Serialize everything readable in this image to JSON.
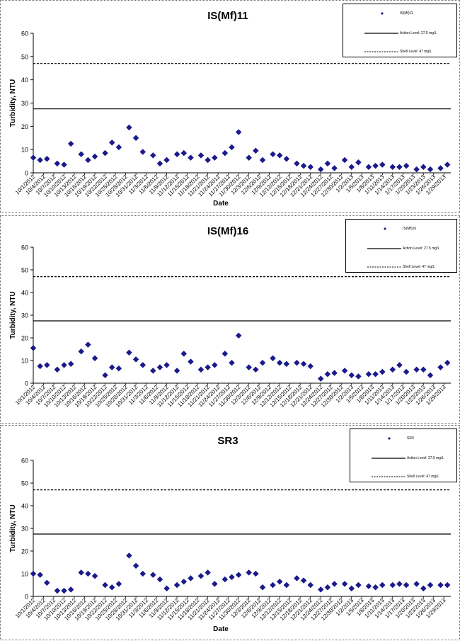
{
  "chart_data": [
    {
      "type": "scatter",
      "title": "IS(Mf)11",
      "xlabel": "Date",
      "ylabel": "Turbidity, NTU",
      "ylim": [
        0,
        60
      ],
      "yticks": [
        0,
        10,
        20,
        30,
        40,
        50,
        60
      ],
      "xlim": [
        "10/1/2012",
        "1/31/2013"
      ],
      "xtick_labels": [
        "10/1/2012",
        "10/4/2012",
        "10/7/2012",
        "10/10/2012",
        "10/13/2012",
        "10/16/2012",
        "10/19/2012",
        "10/22/2012",
        "10/25/2012",
        "10/28/2012",
        "10/31/2012",
        "11/3/2012",
        "11/6/2012",
        "11/9/2012",
        "11/12/2012",
        "11/15/2012",
        "11/18/2012",
        "11/21/2012",
        "11/24/2012",
        "11/27/2012",
        "11/30/2012",
        "12/3/2012",
        "12/6/2012",
        "12/9/2012",
        "12/12/2012",
        "12/15/2012",
        "12/18/2012",
        "12/21/2012",
        "12/24/2012",
        "12/27/2012",
        "12/30/2012",
        "1/2/2013",
        "1/5/2013",
        "1/8/2013",
        "1/11/2013",
        "1/14/2013",
        "1/17/2013",
        "1/20/2013",
        "1/23/2013",
        "1/26/2013",
        "1/29/2013"
      ],
      "series": [
        {
          "name": "IS(Mf)11",
          "points": [
            {
              "x": "10/1/2012",
              "y": 6.5
            },
            {
              "x": "10/3/2012",
              "y": 5.5
            },
            {
              "x": "10/5/2012",
              "y": 6
            },
            {
              "x": "10/8/2012",
              "y": 4
            },
            {
              "x": "10/10/2012",
              "y": 3.5
            },
            {
              "x": "10/12/2012",
              "y": 12.5
            },
            {
              "x": "10/15/2012",
              "y": 8
            },
            {
              "x": "10/17/2012",
              "y": 5.5
            },
            {
              "x": "10/19/2012",
              "y": 7
            },
            {
              "x": "10/22/2012",
              "y": 8.5
            },
            {
              "x": "10/24/2012",
              "y": 13
            },
            {
              "x": "10/26/2012",
              "y": 11
            },
            {
              "x": "10/29/2012",
              "y": 19.5
            },
            {
              "x": "10/31/2012",
              "y": 15
            },
            {
              "x": "11/2/2012",
              "y": 9
            },
            {
              "x": "11/5/2012",
              "y": 7.5
            },
            {
              "x": "11/7/2012",
              "y": 4
            },
            {
              "x": "11/9/2012",
              "y": 5.5
            },
            {
              "x": "11/12/2012",
              "y": 8
            },
            {
              "x": "11/14/2012",
              "y": 8.5
            },
            {
              "x": "11/16/2012",
              "y": 6.5
            },
            {
              "x": "11/19/2012",
              "y": 7.5
            },
            {
              "x": "11/21/2012",
              "y": 5.5
            },
            {
              "x": "11/23/2012",
              "y": 6.5
            },
            {
              "x": "11/26/2012",
              "y": 8.5
            },
            {
              "x": "11/28/2012",
              "y": 11
            },
            {
              "x": "11/30/2012",
              "y": 17.5
            },
            {
              "x": "12/3/2012",
              "y": 6.5
            },
            {
              "x": "12/5/2012",
              "y": 9.5
            },
            {
              "x": "12/7/2012",
              "y": 5.5
            },
            {
              "x": "12/10/2012",
              "y": 8
            },
            {
              "x": "12/12/2012",
              "y": 7.5
            },
            {
              "x": "12/14/2012",
              "y": 6
            },
            {
              "x": "12/17/2012",
              "y": 4
            },
            {
              "x": "12/19/2012",
              "y": 3
            },
            {
              "x": "12/21/2012",
              "y": 2.5
            },
            {
              "x": "12/24/2012",
              "y": 1.5
            },
            {
              "x": "12/26/2012",
              "y": 4
            },
            {
              "x": "12/28/2012",
              "y": 2
            },
            {
              "x": "12/31/2012",
              "y": 5.5
            },
            {
              "x": "1/2/2013",
              "y": 2.5
            },
            {
              "x": "1/4/2013",
              "y": 4.5
            },
            {
              "x": "1/7/2013",
              "y": 2.5
            },
            {
              "x": "1/9/2013",
              "y": 3
            },
            {
              "x": "1/11/2013",
              "y": 3.5
            },
            {
              "x": "1/14/2013",
              "y": 2.5
            },
            {
              "x": "1/16/2013",
              "y": 2.5
            },
            {
              "x": "1/18/2013",
              "y": 3
            },
            {
              "x": "1/21/2013",
              "y": 1.5
            },
            {
              "x": "1/23/2013",
              "y": 2.5
            },
            {
              "x": "1/25/2013",
              "y": 1.5
            },
            {
              "x": "1/28/2013",
              "y": 2
            },
            {
              "x": "1/30/2013",
              "y": 3.5
            }
          ]
        }
      ],
      "reference_lines": [
        {
          "name": "Action Level: 27.5 mg/L",
          "y": 27.5,
          "style": "solid"
        },
        {
          "name": "Shell Level: 47 mg/L",
          "y": 47,
          "style": "dashed"
        }
      ],
      "legend": {
        "placement": "top-right"
      },
      "grid": false
    },
    {
      "type": "scatter",
      "title": "IS(Mf)16",
      "xlabel": "",
      "ylabel": "Turbidity, NTU",
      "ylim": [
        0,
        60
      ],
      "yticks": [
        0,
        10,
        20,
        30,
        40,
        50,
        60
      ],
      "xlim": [
        "10/1/2012",
        "1/31/2013"
      ],
      "xtick_labels": [
        "10/1/2012",
        "10/4/2012",
        "10/7/2012",
        "10/10/2012",
        "10/13/2012",
        "10/16/2012",
        "10/19/2012",
        "10/22/2012",
        "10/25/2012",
        "10/28/2012",
        "10/31/2012",
        "11/3/2012",
        "11/6/2012",
        "11/9/2012",
        "11/12/2012",
        "11/15/2012",
        "11/18/2012",
        "11/21/2012",
        "11/24/2012",
        "11/27/2012",
        "11/30/2012",
        "12/3/2012",
        "12/6/2012",
        "12/9/2012",
        "12/12/2012",
        "12/15/2012",
        "12/18/2012",
        "12/21/2012",
        "12/24/2012",
        "12/27/2012",
        "12/30/2012",
        "1/2/2013",
        "1/5/2013",
        "1/8/2013",
        "1/11/2013",
        "1/14/2013",
        "1/17/2013",
        "1/20/2013",
        "1/23/2013",
        "1/26/2013",
        "1/29/2013"
      ],
      "series": [
        {
          "name": "IS(Mf)16",
          "points": [
            {
              "x": "10/1/2012",
              "y": 15.5
            },
            {
              "x": "10/3/2012",
              "y": 7.5
            },
            {
              "x": "10/5/2012",
              "y": 8
            },
            {
              "x": "10/8/2012",
              "y": 6
            },
            {
              "x": "10/10/2012",
              "y": 8
            },
            {
              "x": "10/12/2012",
              "y": 8.5
            },
            {
              "x": "10/15/2012",
              "y": 14
            },
            {
              "x": "10/17/2012",
              "y": 17
            },
            {
              "x": "10/19/2012",
              "y": 11
            },
            {
              "x": "10/22/2012",
              "y": 3.5
            },
            {
              "x": "10/24/2012",
              "y": 7
            },
            {
              "x": "10/26/2012",
              "y": 6.5
            },
            {
              "x": "10/29/2012",
              "y": 13.5
            },
            {
              "x": "10/31/2012",
              "y": 10.5
            },
            {
              "x": "11/2/2012",
              "y": 8
            },
            {
              "x": "11/5/2012",
              "y": 5.5
            },
            {
              "x": "11/7/2012",
              "y": 7
            },
            {
              "x": "11/9/2012",
              "y": 8
            },
            {
              "x": "11/12/2012",
              "y": 5.5
            },
            {
              "x": "11/14/2012",
              "y": 13
            },
            {
              "x": "11/16/2012",
              "y": 9.5
            },
            {
              "x": "11/19/2012",
              "y": 6
            },
            {
              "x": "11/21/2012",
              "y": 7
            },
            {
              "x": "11/23/2012",
              "y": 8
            },
            {
              "x": "11/26/2012",
              "y": 13
            },
            {
              "x": "11/28/2012",
              "y": 9
            },
            {
              "x": "11/30/2012",
              "y": 21
            },
            {
              "x": "12/3/2012",
              "y": 7
            },
            {
              "x": "12/5/2012",
              "y": 6
            },
            {
              "x": "12/7/2012",
              "y": 9
            },
            {
              "x": "12/10/2012",
              "y": 11
            },
            {
              "x": "12/12/2012",
              "y": 9
            },
            {
              "x": "12/14/2012",
              "y": 8.5
            },
            {
              "x": "12/17/2012",
              "y": 9
            },
            {
              "x": "12/19/2012",
              "y": 8.5
            },
            {
              "x": "12/21/2012",
              "y": 7.5
            },
            {
              "x": "12/24/2012",
              "y": 2
            },
            {
              "x": "12/26/2012",
              "y": 4
            },
            {
              "x": "12/28/2012",
              "y": 4.5
            },
            {
              "x": "12/31/2012",
              "y": 5.5
            },
            {
              "x": "1/2/2013",
              "y": 3.5
            },
            {
              "x": "1/4/2013",
              "y": 3
            },
            {
              "x": "1/7/2013",
              "y": 4
            },
            {
              "x": "1/9/2013",
              "y": 4
            },
            {
              "x": "1/11/2013",
              "y": 5
            },
            {
              "x": "1/14/2013",
              "y": 6
            },
            {
              "x": "1/16/2013",
              "y": 8
            },
            {
              "x": "1/18/2013",
              "y": 5
            },
            {
              "x": "1/21/2013",
              "y": 6
            },
            {
              "x": "1/23/2013",
              "y": 6
            },
            {
              "x": "1/25/2013",
              "y": 3.5
            },
            {
              "x": "1/28/2013",
              "y": 7
            },
            {
              "x": "1/30/2013",
              "y": 9
            }
          ]
        }
      ],
      "reference_lines": [
        {
          "name": "Action Level: 27.5 mg/L",
          "y": 27.5,
          "style": "solid"
        },
        {
          "name": "Shell Level: 47 mg/L",
          "y": 47,
          "style": "dashed"
        }
      ],
      "legend": {
        "placement": "top-right"
      },
      "grid": false
    },
    {
      "type": "scatter",
      "title": "SR3",
      "xlabel": "Date",
      "ylabel": "Turbidity, NTU",
      "ylim": [
        0,
        60
      ],
      "yticks": [
        0,
        10,
        20,
        30,
        40,
        50,
        60
      ],
      "xlim": [
        "10/1/2012",
        "1/31/2013"
      ],
      "xtick_labels": [
        "10/1/2012",
        "10/4/2012",
        "10/7/2012",
        "10/10/2012",
        "10/13/2012",
        "10/16/2012",
        "10/19/2012",
        "10/22/2012",
        "10/25/2012",
        "10/28/2012",
        "10/31/2012",
        "11/3/2012",
        "11/6/2012",
        "11/9/2012",
        "11/12/2012",
        "11/15/2012",
        "11/18/2012",
        "11/21/2012",
        "11/24/2012",
        "11/27/2012",
        "11/30/2012",
        "12/3/2012",
        "12/6/2012",
        "12/9/2012",
        "12/12/2012",
        "12/15/2012",
        "12/18/2012",
        "12/21/2012",
        "12/24/2012",
        "12/27/2012",
        "12/30/2012",
        "1/2/2013",
        "1/5/2013",
        "1/8/2013",
        "1/11/2013",
        "1/14/2013",
        "1/17/2013",
        "1/20/2013",
        "1/23/2013",
        "1/26/2013",
        "1/29/2013"
      ],
      "series": [
        {
          "name": "SR3",
          "points": [
            {
              "x": "10/1/2012",
              "y": 10
            },
            {
              "x": "10/3/2012",
              "y": 9.5
            },
            {
              "x": "10/5/2012",
              "y": 6
            },
            {
              "x": "10/8/2012",
              "y": 2.5
            },
            {
              "x": "10/10/2012",
              "y": 2.5
            },
            {
              "x": "10/12/2012",
              "y": 3
            },
            {
              "x": "10/15/2012",
              "y": 10.5
            },
            {
              "x": "10/17/2012",
              "y": 10
            },
            {
              "x": "10/19/2012",
              "y": 9
            },
            {
              "x": "10/22/2012",
              "y": 5
            },
            {
              "x": "10/24/2012",
              "y": 4
            },
            {
              "x": "10/26/2012",
              "y": 5.5
            },
            {
              "x": "10/29/2012",
              "y": 18
            },
            {
              "x": "10/31/2012",
              "y": 13.5
            },
            {
              "x": "11/2/2012",
              "y": 10
            },
            {
              "x": "11/5/2012",
              "y": 9.5
            },
            {
              "x": "11/7/2012",
              "y": 7.5
            },
            {
              "x": "11/9/2012",
              "y": 3.5
            },
            {
              "x": "11/12/2012",
              "y": 5
            },
            {
              "x": "11/14/2012",
              "y": 6.5
            },
            {
              "x": "11/16/2012",
              "y": 8
            },
            {
              "x": "11/19/2012",
              "y": 9
            },
            {
              "x": "11/21/2012",
              "y": 10.5
            },
            {
              "x": "11/23/2012",
              "y": 5.5
            },
            {
              "x": "11/26/2012",
              "y": 7.5
            },
            {
              "x": "11/28/2012",
              "y": 8.5
            },
            {
              "x": "11/30/2012",
              "y": 9.5
            },
            {
              "x": "12/3/2012",
              "y": 10.5
            },
            {
              "x": "12/5/2012",
              "y": 10
            },
            {
              "x": "12/7/2012",
              "y": 4
            },
            {
              "x": "12/10/2012",
              "y": 5
            },
            {
              "x": "12/12/2012",
              "y": 6.5
            },
            {
              "x": "12/14/2012",
              "y": 5
            },
            {
              "x": "12/17/2012",
              "y": 8
            },
            {
              "x": "12/19/2012",
              "y": 7
            },
            {
              "x": "12/21/2012",
              "y": 5
            },
            {
              "x": "12/24/2012",
              "y": 3
            },
            {
              "x": "12/26/2012",
              "y": 4
            },
            {
              "x": "12/28/2012",
              "y": 5.5
            },
            {
              "x": "12/31/2012",
              "y": 5.5
            },
            {
              "x": "1/2/2013",
              "y": 3.5
            },
            {
              "x": "1/4/2013",
              "y": 5
            },
            {
              "x": "1/7/2013",
              "y": 4.5
            },
            {
              "x": "1/9/2013",
              "y": 4
            },
            {
              "x": "1/11/2013",
              "y": 5
            },
            {
              "x": "1/14/2013",
              "y": 5
            },
            {
              "x": "1/16/2013",
              "y": 5.5
            },
            {
              "x": "1/18/2013",
              "y": 5
            },
            {
              "x": "1/21/2013",
              "y": 5.5
            },
            {
              "x": "1/23/2013",
              "y": 3.5
            },
            {
              "x": "1/25/2013",
              "y": 5
            },
            {
              "x": "1/28/2013",
              "y": 5
            },
            {
              "x": "1/30/2013",
              "y": 5
            }
          ]
        }
      ],
      "reference_lines": [
        {
          "name": "Action Level: 27.5 mg/L",
          "y": 27.5,
          "style": "solid"
        },
        {
          "name": "Shell Level: 47 mg/L",
          "y": 47,
          "style": "dashed"
        }
      ],
      "legend": {
        "placement": "top-right"
      },
      "grid": false
    }
  ],
  "colors": {
    "marker": "#1a1a8c",
    "reference_line": "#000000",
    "axis": "#000000",
    "panel_border": "#666666"
  }
}
